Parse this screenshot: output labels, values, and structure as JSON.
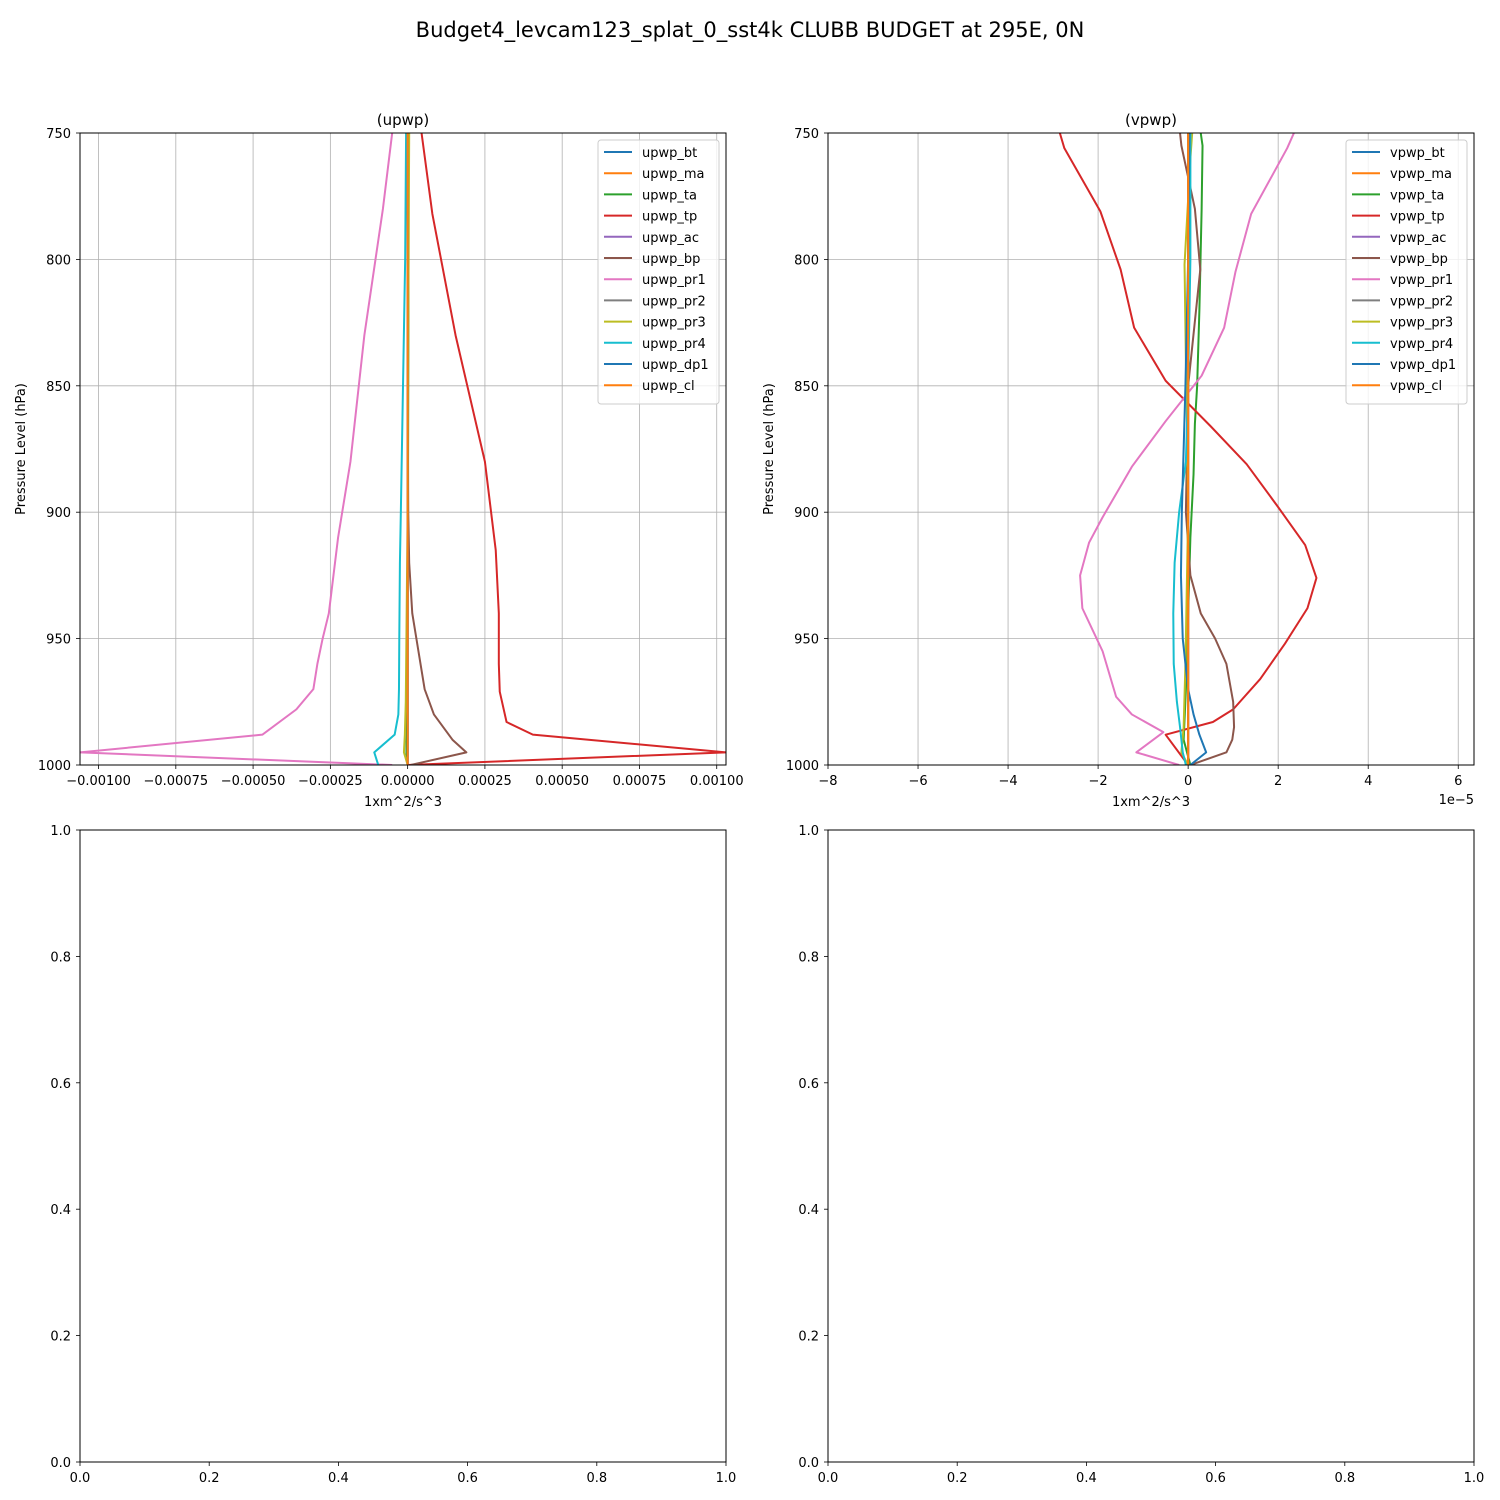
{
  "figure": {
    "suptitle": "Budget4_levcam123_splat_0_sst4k CLUBB BUDGET at 295E, 0N"
  },
  "chart_data": [
    {
      "type": "line",
      "title": "(upwp)",
      "xlabel": "1xm^2/s^3",
      "ylabel": "Pressure Level (hPa)",
      "xlim": [
        -0.00106,
        0.00103
      ],
      "ylim": [
        1000,
        750
      ],
      "y_inverted": true,
      "grid": true,
      "legend": "upper right",
      "x_ticks": [
        -0.001,
        -0.00075,
        -0.0005,
        -0.00025,
        0,
        0.00025,
        0.0005,
        0.00075,
        0.001
      ],
      "x_tick_labels": [
        "−0.00100",
        "−0.00075",
        "−0.00050",
        "−0.00025",
        "0.00000",
        "0.00025",
        "0.00050",
        "0.00075",
        "0.00100"
      ],
      "y_ticks": [
        750,
        800,
        850,
        900,
        950,
        1000
      ],
      "y_tick_labels": [
        "750",
        "800",
        "850",
        "900",
        "950",
        "1000"
      ],
      "offset_label": "",
      "series": [
        {
          "name": "upwp_bt",
          "color": "#1f77b4",
          "x": [
            0,
            0,
            0,
            0,
            0,
            0,
            0,
            0,
            0,
            0
          ],
          "y": [
            750,
            800,
            850,
            900,
            925,
            950,
            975,
            988,
            995,
            1000
          ]
        },
        {
          "name": "upwp_ma",
          "color": "#ff7f0e",
          "x": [
            0,
            0,
            0,
            0,
            0,
            0,
            0,
            0,
            0,
            0
          ],
          "y": [
            750,
            800,
            850,
            900,
            925,
            950,
            975,
            988,
            995,
            1000
          ]
        },
        {
          "name": "upwp_ta",
          "color": "#2ca02c",
          "x": [
            3e-06,
            3e-06,
            2e-06,
            1e-06,
            0,
            -1e-06,
            -2e-06,
            -3e-06,
            -4e-06,
            0
          ],
          "y": [
            750,
            800,
            850,
            900,
            925,
            950,
            975,
            988,
            995,
            1000
          ]
        },
        {
          "name": "upwp_tp",
          "color": "#d62728",
          "x": [
            4.5e-05,
            8e-05,
            0.000155,
            0.00025,
            0.000285,
            0.000295,
            0.000295,
            0.000298,
            0.00032,
            0.000405,
            0.00103,
            0
          ],
          "y": [
            750,
            782,
            830,
            880,
            915,
            940,
            960,
            971,
            983,
            988,
            995,
            1000
          ]
        },
        {
          "name": "upwp_ac",
          "color": "#9467bd",
          "x": [
            0,
            0,
            0,
            0,
            0,
            0,
            0,
            0,
            0,
            0
          ],
          "y": [
            750,
            800,
            850,
            900,
            925,
            950,
            975,
            988,
            995,
            1000
          ]
        },
        {
          "name": "upwp_bp",
          "color": "#8c564b",
          "x": [
            0,
            0,
            0,
            2e-06,
            5e-06,
            1.5e-05,
            3.5e-05,
            5.5e-05,
            8.5e-05,
            0.000145,
            0.00019,
            1e-05
          ],
          "y": [
            750,
            800,
            850,
            900,
            920,
            940,
            955,
            970,
            980,
            990,
            995,
            1000
          ]
        },
        {
          "name": "upwp_pr1",
          "color": "#e377c2",
          "x": [
            -5e-05,
            -8e-05,
            -0.00014,
            -0.000185,
            -0.000225,
            -0.000255,
            -0.000275,
            -0.000292,
            -0.000305,
            -0.00036,
            -0.00047,
            -0.00106,
            -5e-05
          ],
          "y": [
            750,
            780,
            830,
            880,
            910,
            940,
            950,
            960,
            970,
            978,
            988,
            995,
            1000
          ]
        },
        {
          "name": "upwp_pr2",
          "color": "#7f7f7f",
          "x": [
            0,
            0,
            0,
            0,
            0,
            0,
            0,
            0,
            0,
            0
          ],
          "y": [
            750,
            800,
            850,
            900,
            925,
            950,
            975,
            988,
            995,
            1000
          ]
        },
        {
          "name": "upwp_pr3",
          "color": "#bcbd22",
          "x": [
            5e-06,
            3e-06,
            1e-06,
            0,
            -2e-06,
            -4e-06,
            -6e-06,
            -9e-06,
            -1.2e-05,
            0
          ],
          "y": [
            750,
            800,
            850,
            900,
            925,
            950,
            975,
            988,
            995,
            1000
          ]
        },
        {
          "name": "upwp_pr4",
          "color": "#17becf",
          "x": [
            -5e-06,
            -8e-06,
            -1.5e-05,
            -2.2e-05,
            -2.5e-05,
            -2.7e-05,
            -2.8e-05,
            -3e-05,
            -4.2e-05,
            -0.000108,
            -9.5e-05
          ],
          "y": [
            750,
            800,
            850,
            900,
            920,
            950,
            970,
            980,
            988,
            995,
            1000
          ]
        },
        {
          "name": "upwp_dp1",
          "color": "#1f77b4",
          "x": [
            0,
            0,
            0,
            0,
            0,
            0,
            0,
            0,
            0,
            0
          ],
          "y": [
            750,
            800,
            850,
            900,
            925,
            950,
            975,
            988,
            995,
            1000
          ]
        },
        {
          "name": "upwp_cl",
          "color": "#ff7f0e",
          "x": [
            0,
            0,
            0,
            0,
            0,
            0,
            0,
            0,
            0,
            0
          ],
          "y": [
            750,
            800,
            850,
            900,
            925,
            950,
            975,
            988,
            995,
            1000
          ]
        }
      ]
    },
    {
      "type": "line",
      "title": "(vpwp)",
      "xlabel": "1xm^2/s^3",
      "ylabel": "Pressure Level (hPa)",
      "xlim": [
        -8e-05,
        6.35e-05
      ],
      "ylim": [
        1000,
        750
      ],
      "y_inverted": true,
      "grid": true,
      "legend": "upper right",
      "x_ticks": [
        -8e-05,
        -6e-05,
        -4e-05,
        -2e-05,
        0,
        2e-05,
        4e-05,
        6e-05
      ],
      "x_tick_labels": [
        "−8",
        "−6",
        "−4",
        "−2",
        "0",
        "2",
        "4",
        "6"
      ],
      "y_ticks": [
        750,
        800,
        850,
        900,
        950,
        1000
      ],
      "y_tick_labels": [
        "750",
        "800",
        "850",
        "900",
        "950",
        "1000"
      ],
      "offset_label": "1e−5",
      "series": [
        {
          "name": "vpwp_bt",
          "color": "#1f77b4",
          "x": [
            0,
            0,
            0,
            0,
            0,
            0,
            0,
            0,
            0,
            0
          ],
          "y": [
            750,
            800,
            850,
            900,
            925,
            950,
            975,
            988,
            995,
            1000
          ]
        },
        {
          "name": "vpwp_ma",
          "color": "#ff7f0e",
          "x": [
            0,
            0,
            0,
            0,
            0,
            0,
            0,
            0,
            0,
            0
          ],
          "y": [
            750,
            800,
            850,
            900,
            925,
            950,
            975,
            988,
            995,
            1000
          ]
        },
        {
          "name": "vpwp_ta",
          "color": "#2ca02c",
          "x": [
            2.8e-06,
            3.2e-06,
            3e-06,
            2.5e-06,
            2e-06,
            1.5e-06,
            1.2e-06,
            5e-07,
            0,
            -5e-07,
            -1e-06,
            5e-07
          ],
          "y": [
            750,
            755,
            780,
            820,
            850,
            865,
            885,
            910,
            940,
            970,
            990,
            1000
          ]
        },
        {
          "name": "vpwp_tp",
          "color": "#d62728",
          "x": [
            -2.85e-05,
            -2.75e-05,
            -1.95e-05,
            -1.5e-05,
            -1.2e-05,
            -5e-06,
            5e-06,
            1.3e-05,
            2e-05,
            2.6e-05,
            2.85e-05,
            2.65e-05,
            2.15e-05,
            1.6e-05,
            1e-05,
            5.5e-06,
            -5e-06,
            0
          ],
          "y": [
            750,
            756,
            781,
            804,
            827,
            848,
            866,
            881,
            898,
            913,
            926,
            938,
            952,
            966,
            978,
            983,
            988,
            1000
          ]
        },
        {
          "name": "vpwp_ac",
          "color": "#9467bd",
          "x": [
            0,
            0,
            0,
            0,
            0,
            0,
            0,
            0,
            0,
            0
          ],
          "y": [
            750,
            800,
            850,
            900,
            925,
            950,
            975,
            988,
            995,
            1000
          ]
        },
        {
          "name": "vpwp_bp",
          "color": "#8c564b",
          "x": [
            -1.8e-06,
            -1.5e-06,
            1.5e-06,
            2.7e-06,
            0,
            -5e-07,
            5e-07,
            2.8e-06,
            6e-06,
            8.5e-06,
            1e-05,
            1.02e-05,
            9.8e-06,
            8.5e-06,
            5e-07
          ],
          "y": [
            750,
            755,
            780,
            804,
            850,
            900,
            925,
            940,
            950,
            960,
            975,
            985,
            990,
            995,
            1000
          ]
        },
        {
          "name": "vpwp_pr1",
          "color": "#e377c2",
          "x": [
            2.35e-05,
            2.2e-05,
            1.4e-05,
            1.05e-05,
            8e-06,
            3e-06,
            -5e-06,
            -1.25e-05,
            -1.9e-05,
            -2.2e-05,
            -2.4e-05,
            -2.35e-05,
            -1.9e-05,
            -1.6e-05,
            -1.25e-05,
            -5.5e-06,
            -1.15e-05,
            -2e-06
          ],
          "y": [
            750,
            756,
            782,
            805,
            827,
            846,
            864,
            882,
            902,
            912,
            925,
            938,
            955,
            973,
            980,
            987,
            995,
            1000
          ]
        },
        {
          "name": "vpwp_pr2",
          "color": "#7f7f7f",
          "x": [
            0,
            0,
            0,
            0,
            0,
            0,
            0,
            0,
            0,
            0
          ],
          "y": [
            750,
            800,
            850,
            900,
            925,
            950,
            975,
            988,
            995,
            1000
          ]
        },
        {
          "name": "vpwp_pr3",
          "color": "#bcbd22",
          "x": [
            9e-07,
            5e-07,
            -8e-07,
            -5e-07,
            -2e-07,
            0,
            -3e-07,
            -6e-07,
            -1e-06,
            -1.5e-06,
            0
          ],
          "y": [
            750,
            760,
            802,
            840,
            870,
            900,
            930,
            960,
            985,
            995,
            1000
          ]
        },
        {
          "name": "vpwp_pr4",
          "color": "#17becf",
          "x": [
            5e-07,
            5e-07,
            0,
            -5e-07,
            -2e-06,
            -3e-06,
            -3.3e-06,
            -3.2e-06,
            -2.5e-06,
            -1.8e-06,
            -1.2e-06,
            -5e-07
          ],
          "y": [
            750,
            800,
            850,
            880,
            900,
            920,
            940,
            960,
            975,
            985,
            995,
            1000
          ]
        },
        {
          "name": "vpwp_dp1",
          "color": "#1f77b4",
          "x": [
            3e-07,
            0,
            -6e-07,
            -1.4e-06,
            -1.6e-06,
            -1.2e-06,
            0,
            1.2e-06,
            2.5e-06,
            4e-06,
            5e-07
          ],
          "y": [
            750,
            800,
            850,
            900,
            925,
            950,
            970,
            980,
            988,
            995,
            1000
          ]
        },
        {
          "name": "vpwp_cl",
          "color": "#ff7f0e",
          "x": [
            0,
            0,
            0,
            0,
            0,
            0,
            0,
            0,
            0,
            0
          ],
          "y": [
            750,
            800,
            850,
            900,
            925,
            950,
            975,
            988,
            995,
            1000
          ]
        }
      ]
    },
    {
      "type": "line",
      "title": "",
      "xlabel": "",
      "ylabel": "",
      "xlim": [
        0,
        1
      ],
      "ylim": [
        0,
        1
      ],
      "grid": false,
      "x_ticks": [
        0,
        0.2,
        0.4,
        0.6,
        0.8,
        1
      ],
      "x_tick_labels": [
        "0.0",
        "0.2",
        "0.4",
        "0.6",
        "0.8",
        "1.0"
      ],
      "y_ticks": [
        0,
        0.2,
        0.4,
        0.6,
        0.8,
        1
      ],
      "y_tick_labels": [
        "0.0",
        "0.2",
        "0.4",
        "0.6",
        "0.8",
        "1.0"
      ],
      "series": []
    },
    {
      "type": "line",
      "title": "",
      "xlabel": "",
      "ylabel": "",
      "xlim": [
        0,
        1
      ],
      "ylim": [
        0,
        1
      ],
      "grid": false,
      "x_ticks": [
        0,
        0.2,
        0.4,
        0.6,
        0.8,
        1
      ],
      "x_tick_labels": [
        "0.0",
        "0.2",
        "0.4",
        "0.6",
        "0.8",
        "1.0"
      ],
      "y_ticks": [
        0,
        0.2,
        0.4,
        0.6,
        0.8,
        1
      ],
      "y_tick_labels": [
        "0.0",
        "0.2",
        "0.4",
        "0.6",
        "0.8",
        "1.0"
      ],
      "series": []
    }
  ]
}
